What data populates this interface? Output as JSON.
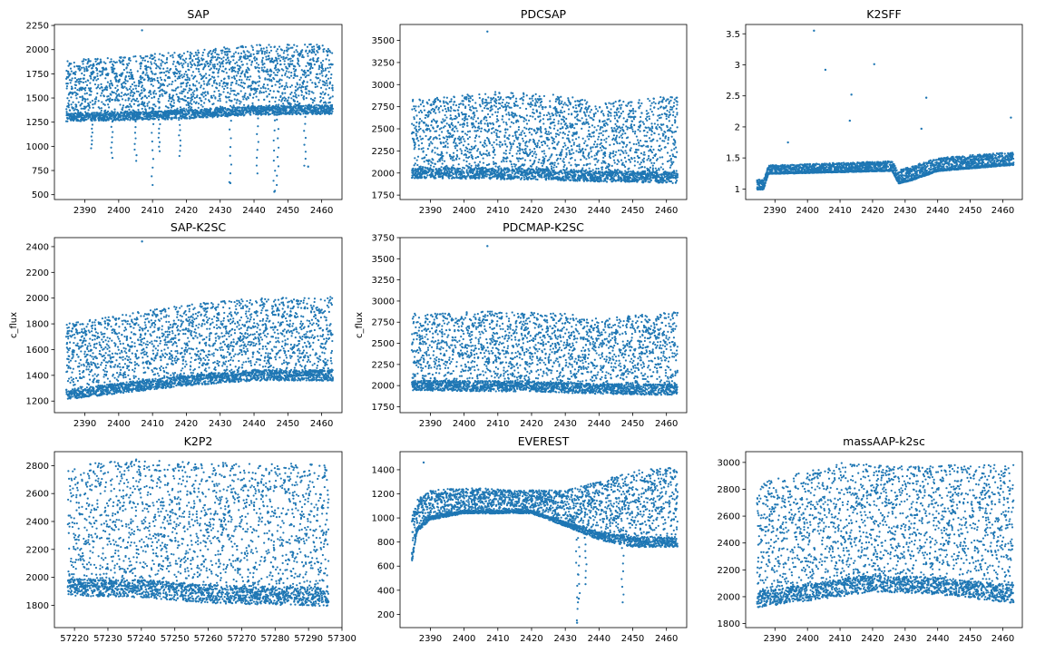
{
  "figure": {
    "marker_color": "#1f77b4"
  },
  "chart_data": [
    {
      "id": "sap",
      "type": "scatter",
      "title": "SAP",
      "xlabel": "",
      "ylabel": "",
      "xlim": [
        2381,
        2466
      ],
      "ylim": [
        450,
        2260
      ],
      "xticks": [
        2390,
        2400,
        2410,
        2420,
        2430,
        2440,
        2450,
        2460
      ],
      "yticks": [
        500,
        750,
        1000,
        1250,
        1500,
        1750,
        2000,
        2250
      ],
      "x_range": [
        2384.5,
        2463.3
      ],
      "n_points": 3400,
      "baseline": [
        [
          2384.5,
          1300
        ],
        [
          2400,
          1310
        ],
        [
          2420,
          1330
        ],
        [
          2440,
          1370
        ],
        [
          2463.3,
          1380
        ]
      ],
      "upper": [
        [
          2384.5,
          1900
        ],
        [
          2400,
          1920
        ],
        [
          2420,
          1990
        ],
        [
          2440,
          2050
        ],
        [
          2463.3,
          2060
        ]
      ],
      "dips": [
        [
          2392,
          980
        ],
        [
          2398,
          880
        ],
        [
          2405,
          850
        ],
        [
          2410,
          600
        ],
        [
          2412,
          950
        ],
        [
          2418,
          900
        ],
        [
          2433,
          630
        ],
        [
          2441,
          720
        ],
        [
          2446,
          540
        ],
        [
          2447,
          600
        ],
        [
          2455,
          800
        ]
      ],
      "outliers": [
        [
          2406.9,
          2200
        ],
        [
          2433,
          620
        ],
        [
          2446,
          530
        ],
        [
          2456,
          790
        ]
      ]
    },
    {
      "id": "pdcsap",
      "type": "scatter",
      "title": "PDCSAP",
      "xlabel": "",
      "ylabel": "",
      "xlim": [
        2381,
        2466
      ],
      "ylim": [
        1700,
        3680
      ],
      "xticks": [
        2390,
        2400,
        2410,
        2420,
        2430,
        2440,
        2450,
        2460
      ],
      "yticks": [
        1750,
        2000,
        2250,
        2500,
        2750,
        3000,
        3250,
        3500
      ],
      "x_range": [
        2384.5,
        2463.3
      ],
      "n_points": 3400,
      "baseline": [
        [
          2384.5,
          2000
        ],
        [
          2420,
          1990
        ],
        [
          2440,
          1960
        ],
        [
          2463.3,
          1950
        ]
      ],
      "upper": [
        [
          2384.5,
          2830
        ],
        [
          2410,
          2920
        ],
        [
          2430,
          2880
        ],
        [
          2440,
          2800
        ],
        [
          2463.3,
          2880
        ]
      ],
      "dips": [],
      "outliers": [
        [
          2406.9,
          3600
        ]
      ]
    },
    {
      "id": "k2sff",
      "type": "scatter",
      "title": "K2SFF",
      "xlabel": "",
      "ylabel": "",
      "xlim": [
        2381,
        2466
      ],
      "ylim": [
        0.83,
        3.65
      ],
      "xticks": [
        2390,
        2400,
        2410,
        2420,
        2430,
        2440,
        2450,
        2460
      ],
      "yticks": [
        1.0,
        1.5,
        2.0,
        2.5,
        3.0,
        3.5
      ],
      "x_range": [
        2384.5,
        2463.3
      ],
      "n_points": 3000,
      "baseline": [
        [
          2384.5,
          1.0
        ],
        [
          2386.5,
          1.0
        ],
        [
          2388,
          1.25
        ],
        [
          2426,
          1.3
        ],
        [
          2428,
          1.1
        ],
        [
          2432,
          1.15
        ],
        [
          2440,
          1.3
        ],
        [
          2463.3,
          1.4
        ]
      ],
      "upper": [
        [
          2384.5,
          1.15
        ],
        [
          2386.5,
          1.15
        ],
        [
          2388,
          1.38
        ],
        [
          2426,
          1.45
        ],
        [
          2428,
          1.3
        ],
        [
          2440,
          1.5
        ],
        [
          2463.3,
          1.6
        ]
      ],
      "dips": [],
      "outliers": [
        [
          2402,
          3.55
        ],
        [
          2405.5,
          2.92
        ],
        [
          2413.5,
          2.52
        ],
        [
          2420.5,
          3.01
        ],
        [
          2413,
          2.1
        ],
        [
          2436.5,
          2.47
        ],
        [
          2435,
          1.97
        ],
        [
          2462.5,
          2.15
        ],
        [
          2394,
          1.75
        ]
      ]
    },
    {
      "id": "sap-k2sc",
      "type": "scatter",
      "title": "SAP-K2SC",
      "xlabel": "",
      "ylabel": "c_flux",
      "xlim": [
        2381,
        2466
      ],
      "ylim": [
        1110,
        2470
      ],
      "xticks": [
        2390,
        2400,
        2410,
        2420,
        2430,
        2440,
        2450,
        2460
      ],
      "yticks": [
        1200,
        1400,
        1600,
        1800,
        2000,
        2200,
        2400
      ],
      "x_range": [
        2384.5,
        2463.3
      ],
      "n_points": 3400,
      "baseline": [
        [
          2384.5,
          1250
        ],
        [
          2400,
          1300
        ],
        [
          2420,
          1360
        ],
        [
          2440,
          1400
        ],
        [
          2463.3,
          1400
        ]
      ],
      "upper": [
        [
          2384.5,
          1800
        ],
        [
          2400,
          1870
        ],
        [
          2420,
          1950
        ],
        [
          2440,
          2000
        ],
        [
          2463.3,
          2010
        ]
      ],
      "dips": [],
      "outliers": [
        [
          2406.9,
          2440
        ]
      ]
    },
    {
      "id": "pdcmap-k2sc",
      "type": "scatter",
      "title": "PDCMAP-K2SC",
      "xlabel": "",
      "ylabel": "c_flux",
      "xlim": [
        2381,
        2466
      ],
      "ylim": [
        1680,
        3750
      ],
      "xticks": [
        2390,
        2400,
        2410,
        2420,
        2430,
        2440,
        2450,
        2460
      ],
      "yticks": [
        1750,
        2000,
        2250,
        2500,
        2750,
        3000,
        3250,
        3500,
        3750
      ],
      "x_range": [
        2384.5,
        2463.3
      ],
      "n_points": 3400,
      "baseline": [
        [
          2384.5,
          2000
        ],
        [
          2420,
          1990
        ],
        [
          2440,
          1960
        ],
        [
          2463.3,
          1950
        ]
      ],
      "upper": [
        [
          2384.5,
          2850
        ],
        [
          2410,
          2880
        ],
        [
          2430,
          2850
        ],
        [
          2440,
          2800
        ],
        [
          2463.3,
          2870
        ]
      ],
      "dips": [],
      "outliers": [
        [
          2406.9,
          3650
        ]
      ]
    },
    {
      "id": "k2p2",
      "type": "scatter",
      "title": "K2P2",
      "xlabel": "",
      "ylabel": "",
      "xlim": [
        57214,
        57300
      ],
      "ylim": [
        1640,
        2900
      ],
      "xticks": [
        57220,
        57230,
        57240,
        57250,
        57260,
        57270,
        57280,
        57290,
        57300
      ],
      "yticks": [
        1800,
        2000,
        2200,
        2400,
        2600,
        2800
      ],
      "x_range": [
        57218,
        57296
      ],
      "n_points": 3200,
      "baseline": [
        [
          57218,
          1930
        ],
        [
          57240,
          1920
        ],
        [
          57260,
          1880
        ],
        [
          57296,
          1860
        ]
      ],
      "upper": [
        [
          57218,
          2800
        ],
        [
          57240,
          2850
        ],
        [
          57260,
          2820
        ],
        [
          57296,
          2820
        ]
      ],
      "dips": [],
      "outliers": []
    },
    {
      "id": "everest",
      "type": "scatter",
      "title": "EVEREST",
      "xlabel": "",
      "ylabel": "",
      "xlim": [
        2381,
        2466
      ],
      "ylim": [
        90,
        1550
      ],
      "xticks": [
        2390,
        2400,
        2410,
        2420,
        2430,
        2440,
        2450,
        2460
      ],
      "yticks": [
        200,
        400,
        600,
        800,
        1000,
        1200,
        1400
      ],
      "x_range": [
        2384.5,
        2463.3
      ],
      "n_points": 3400,
      "baseline": [
        [
          2384.5,
          650
        ],
        [
          2386,
          900
        ],
        [
          2390,
          1000
        ],
        [
          2400,
          1050
        ],
        [
          2420,
          1050
        ],
        [
          2430,
          950
        ],
        [
          2440,
          850
        ],
        [
          2450,
          800
        ],
        [
          2463.3,
          800
        ]
      ],
      "upper": [
        [
          2384.5,
          1000
        ],
        [
          2386,
          1150
        ],
        [
          2390,
          1230
        ],
        [
          2400,
          1250
        ],
        [
          2420,
          1230
        ],
        [
          2430,
          1230
        ],
        [
          2440,
          1300
        ],
        [
          2450,
          1400
        ],
        [
          2463.3,
          1420
        ]
      ],
      "dips": [
        [
          2433.5,
          150
        ],
        [
          2434,
          300
        ],
        [
          2447,
          300
        ],
        [
          2436,
          450
        ]
      ],
      "outliers": [
        [
          2388,
          1460
        ],
        [
          2433.5,
          130
        ],
        [
          2434,
          330
        ]
      ]
    },
    {
      "id": "massaap-k2sc",
      "type": "scatter",
      "title": "massAAP-k2sc",
      "xlabel": "",
      "ylabel": "",
      "xlim": [
        2381,
        2466
      ],
      "ylim": [
        1770,
        3080
      ],
      "xticks": [
        2390,
        2400,
        2410,
        2420,
        2430,
        2440,
        2450,
        2460
      ],
      "yticks": [
        1800,
        2000,
        2200,
        2400,
        2600,
        2800,
        3000
      ],
      "x_range": [
        2384.5,
        2463.3
      ],
      "n_points": 3400,
      "baseline": [
        [
          2384.5,
          1980
        ],
        [
          2420,
          2100
        ],
        [
          2440,
          2080
        ],
        [
          2463.3,
          2020
        ]
      ],
      "upper": [
        [
          2384.5,
          2840
        ],
        [
          2410,
          3000
        ],
        [
          2430,
          2970
        ],
        [
          2440,
          2980
        ],
        [
          2463.3,
          2990
        ]
      ],
      "dips": [],
      "outliers": []
    }
  ]
}
